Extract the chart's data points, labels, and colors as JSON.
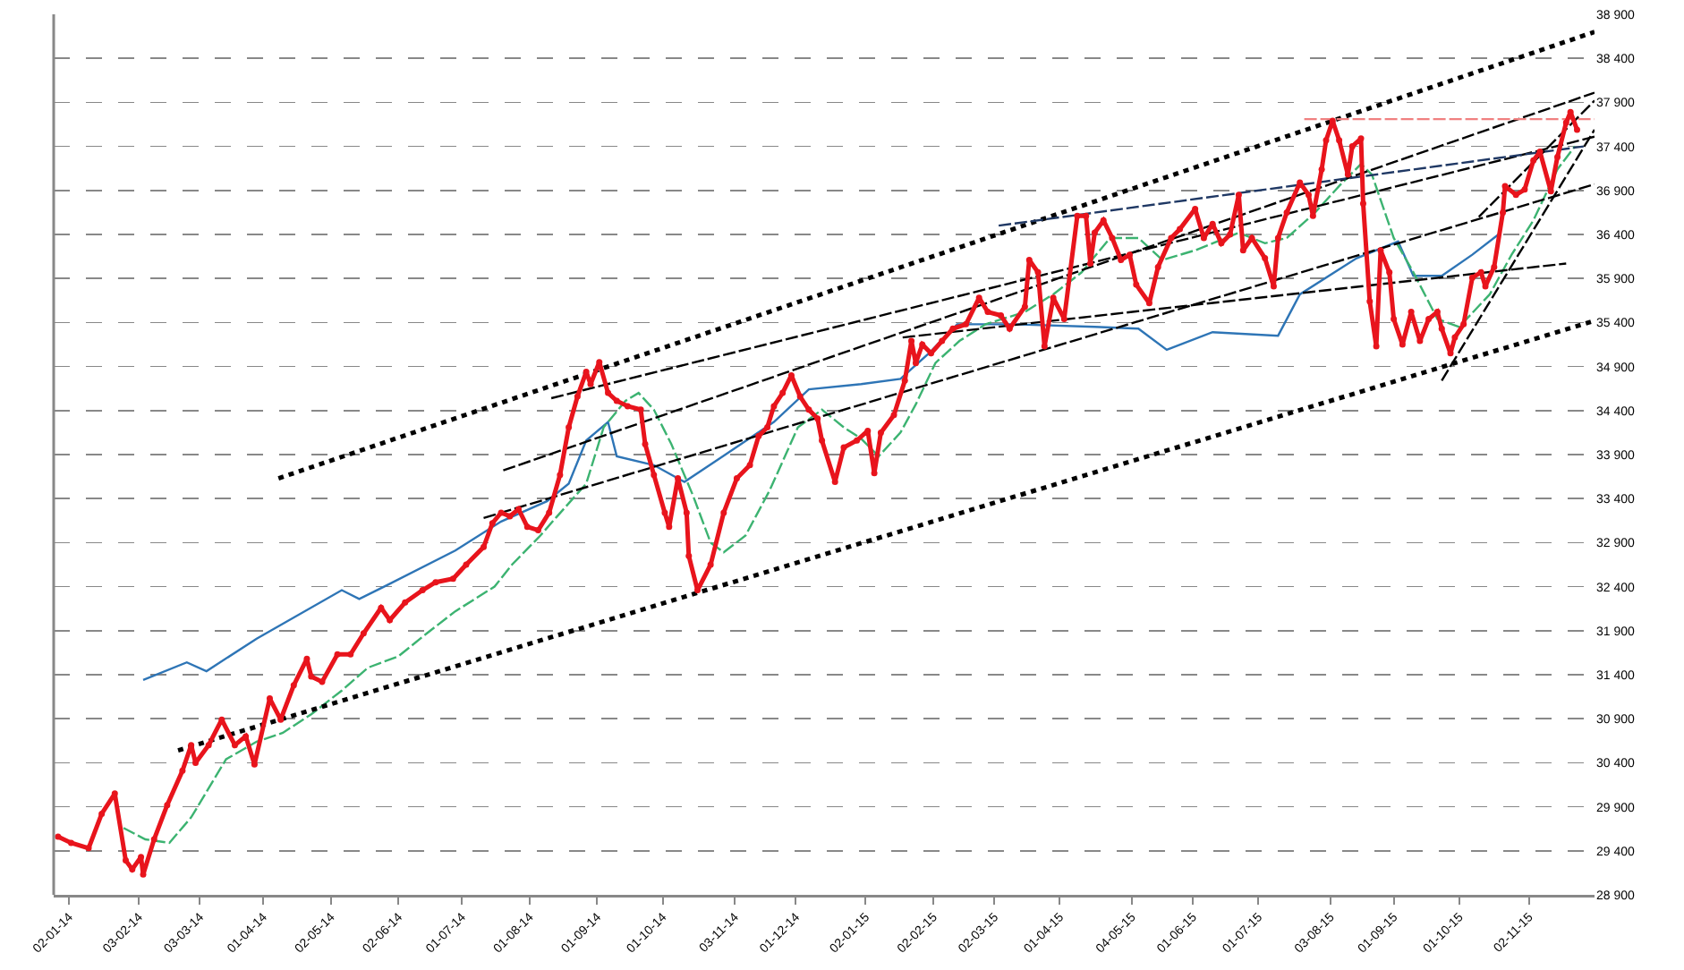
{
  "chart_data": {
    "type": "line",
    "grid": "y",
    "xlim": [
      "2013-12-26",
      "2015-12-02"
    ],
    "xticks": [
      {
        "value": "2014-01-02",
        "label": "02-01-14"
      },
      {
        "value": "2014-02-03",
        "label": "03-02-14"
      },
      {
        "value": "2014-03-03",
        "label": "03-03-14"
      },
      {
        "value": "2014-04-01",
        "label": "01-04-14"
      },
      {
        "value": "2014-05-02",
        "label": "02-05-14"
      },
      {
        "value": "2014-06-02",
        "label": "02-06-14"
      },
      {
        "value": "2014-07-01",
        "label": "01-07-14"
      },
      {
        "value": "2014-08-01",
        "label": "01-08-14"
      },
      {
        "value": "2014-09-01",
        "label": "01-09-14"
      },
      {
        "value": "2014-10-01",
        "label": "01-10-14"
      },
      {
        "value": "2014-11-03",
        "label": "03-11-14"
      },
      {
        "value": "2014-12-01",
        "label": "01-12-14"
      },
      {
        "value": "2015-01-02",
        "label": "02-01-15"
      },
      {
        "value": "2015-02-02",
        "label": "02-02-15"
      },
      {
        "value": "2015-03-02",
        "label": "02-03-15"
      },
      {
        "value": "2015-04-01",
        "label": "01-04-15"
      },
      {
        "value": "2015-05-04",
        "label": "04-05-15"
      },
      {
        "value": "2015-06-01",
        "label": "01-06-15"
      },
      {
        "value": "2015-07-01",
        "label": "01-07-15"
      },
      {
        "value": "2015-08-03",
        "label": "03-08-15"
      },
      {
        "value": "2015-09-01",
        "label": "01-09-15"
      },
      {
        "value": "2015-10-01",
        "label": "01-10-15"
      },
      {
        "value": "2015-11-02",
        "label": "02-11-15"
      }
    ],
    "ylim": [
      28900,
      38900
    ],
    "yticks": [
      {
        "value": 28900,
        "label": "28 900"
      },
      {
        "value": 29400,
        "label": "29 400"
      },
      {
        "value": 29900,
        "label": "29 900"
      },
      {
        "value": 30400,
        "label": "30 400"
      },
      {
        "value": 30900,
        "label": "30 900"
      },
      {
        "value": 31400,
        "label": "31 400"
      },
      {
        "value": 31900,
        "label": "31 900"
      },
      {
        "value": 32400,
        "label": "32 400"
      },
      {
        "value": 32900,
        "label": "32 900"
      },
      {
        "value": 33400,
        "label": "33 400"
      },
      {
        "value": 33900,
        "label": "33 900"
      },
      {
        "value": 34400,
        "label": "34 400"
      },
      {
        "value": 34900,
        "label": "34 900"
      },
      {
        "value": 35400,
        "label": "35 400"
      },
      {
        "value": 35900,
        "label": "35 900"
      },
      {
        "value": 36400,
        "label": "36 400"
      },
      {
        "value": 36900,
        "label": "36 900"
      },
      {
        "value": 37400,
        "label": "37 400"
      },
      {
        "value": 37900,
        "label": "37 900"
      },
      {
        "value": 38400,
        "label": "38 400"
      },
      {
        "value": 38900,
        "label": "38 900"
      }
    ],
    "series": [
      {
        "color": "#2e75b6",
        "line_style": "solid",
        "x": [
          "2014-02-05",
          "2014-02-25",
          "2014-03-06",
          "2014-03-29",
          "2014-05-07",
          "2014-05-15",
          "2014-05-28",
          "2014-06-28",
          "2014-07-19",
          "2014-08-09",
          "2014-08-19",
          "2014-08-27",
          "2014-09-06",
          "2014-09-10",
          "2014-09-27",
          "2014-10-11",
          "2014-10-31",
          "2014-11-21",
          "2014-12-07",
          "2014-12-31",
          "2015-01-18",
          "2015-01-31",
          "2015-02-13",
          "2015-03-11",
          "2015-04-17",
          "2015-05-07",
          "2015-05-20",
          "2015-06-10",
          "2015-07-10",
          "2015-07-20",
          "2015-08-15",
          "2015-09-03",
          "2015-09-10",
          "2015-09-23",
          "2015-10-07",
          "2015-10-19"
        ],
        "values": [
          31340,
          31540,
          31440,
          31810,
          32360,
          32260,
          32420,
          32810,
          33140,
          33370,
          33570,
          34060,
          34270,
          33880,
          33780,
          33590,
          33920,
          34270,
          34640,
          34700,
          34760,
          35050,
          35380,
          35380,
          35350,
          35330,
          35090,
          35290,
          35250,
          35720,
          36130,
          36320,
          35930,
          35930,
          36170,
          36400
        ]
      },
      {
        "color": "#3cb371",
        "line_style": "dashed",
        "x": [
          "2014-01-27",
          "2014-02-06",
          "2014-02-17",
          "2014-02-27",
          "2014-03-15",
          "2014-03-29",
          "2014-04-10",
          "2014-04-23",
          "2014-05-07",
          "2014-05-19",
          "2014-06-02",
          "2014-06-15",
          "2014-06-28",
          "2014-07-16",
          "2014-07-24",
          "2014-08-06",
          "2014-08-13",
          "2014-08-27",
          "2014-09-04",
          "2014-09-14",
          "2014-09-20",
          "2014-09-27",
          "2014-10-05",
          "2014-10-15",
          "2014-10-23",
          "2014-10-29",
          "2014-11-08",
          "2014-11-19",
          "2014-12-02",
          "2014-12-13",
          "2014-12-23",
          "2014-12-31",
          "2015-01-08",
          "2015-01-18",
          "2015-01-25",
          "2015-02-03",
          "2015-02-14",
          "2015-02-26",
          "2015-03-16",
          "2015-03-29",
          "2015-04-11",
          "2015-04-24",
          "2015-05-07",
          "2015-05-18",
          "2015-06-02",
          "2015-06-22",
          "2015-07-04",
          "2015-07-14",
          "2015-07-27",
          "2015-08-07",
          "2015-08-17",
          "2015-08-22",
          "2015-09-01",
          "2015-09-10",
          "2015-09-21",
          "2015-10-01",
          "2015-10-15",
          "2015-10-25",
          "2015-11-04",
          "2015-11-15",
          "2015-11-23"
        ],
        "values": [
          29660,
          29530,
          29490,
          29780,
          30440,
          30640,
          30740,
          30950,
          31220,
          31480,
          31610,
          31870,
          32120,
          32400,
          32650,
          32980,
          33180,
          33570,
          34210,
          34510,
          34600,
          34410,
          34020,
          33430,
          32900,
          32790,
          32980,
          33490,
          34210,
          34410,
          34210,
          34080,
          33880,
          34150,
          34470,
          34940,
          35190,
          35380,
          35520,
          35720,
          35970,
          36360,
          36360,
          36110,
          36220,
          36420,
          36300,
          36360,
          36650,
          36950,
          37200,
          37080,
          36360,
          35970,
          35440,
          35350,
          35720,
          36170,
          36560,
          37140,
          37400
        ]
      },
      {
        "color": "#000000",
        "line_style": "dotted",
        "x": [
          "2014-04-08",
          "2015-12-02"
        ],
        "values": [
          33630,
          38700
        ]
      },
      {
        "color": "#000000",
        "line_style": "dotted",
        "x": [
          "2014-02-21",
          "2015-12-02"
        ],
        "values": [
          30540,
          35420
        ]
      },
      {
        "color": "#000000",
        "line_style": "dashed",
        "x": [
          "2014-07-20",
          "2015-12-02"
        ],
        "values": [
          33720,
          38010
        ]
      },
      {
        "color": "#000000",
        "line_style": "dashed",
        "x": [
          "2014-08-11",
          "2015-12-02"
        ],
        "values": [
          34540,
          37510
        ]
      },
      {
        "color": "#000000",
        "line_style": "dashed",
        "x": [
          "2014-07-11",
          "2015-12-02"
        ],
        "values": [
          33180,
          36970
        ]
      },
      {
        "color": "#000000",
        "line_style": "dashed",
        "x": [
          "2015-01-19",
          "2015-11-19"
        ],
        "values": [
          35230,
          36070
        ]
      },
      {
        "color": "#1f3864",
        "line_style": "dashed",
        "x": [
          "2015-03-04",
          "2015-11-27"
        ],
        "values": [
          36500,
          37400
        ]
      },
      {
        "color": "#f08080",
        "line_style": "dashed",
        "x": [
          "2015-07-22",
          "2015-12-02"
        ],
        "values": [
          37710,
          37710
        ]
      },
      {
        "color": "#000000",
        "line_style": "dashed",
        "x": [
          "2015-09-23",
          "2015-12-02"
        ],
        "values": [
          34740,
          37590
        ]
      },
      {
        "color": "#000000",
        "line_style": "dashed",
        "x": [
          "2015-10-10",
          "2015-12-02"
        ],
        "values": [
          36600,
          37920
        ]
      },
      {
        "color": "#e8141c",
        "line_style": "solid",
        "marker": "circle",
        "x": [
          "2013-12-28",
          "2014-01-03",
          "2014-01-11",
          "2014-01-17",
          "2014-01-23",
          "2014-01-28",
          "2014-01-31",
          "2014-02-04",
          "2014-02-05",
          "2014-02-10",
          "2014-02-16",
          "2014-02-23",
          "2014-02-27",
          "2014-03-01",
          "2014-03-07",
          "2014-03-13",
          "2014-03-19",
          "2014-03-24",
          "2014-03-28",
          "2014-04-04",
          "2014-04-09",
          "2014-04-15",
          "2014-04-21",
          "2014-04-23",
          "2014-04-28",
          "2014-05-05",
          "2014-05-11",
          "2014-05-17",
          "2014-05-25",
          "2014-05-29",
          "2014-06-05",
          "2014-06-13",
          "2014-06-19",
          "2014-06-27",
          "2014-07-03",
          "2014-07-11",
          "2014-07-15",
          "2014-07-19",
          "2014-07-23",
          "2014-07-27",
          "2014-07-31",
          "2014-08-05",
          "2014-08-10",
          "2014-08-15",
          "2014-08-19",
          "2014-08-23",
          "2014-08-27",
          "2014-08-29",
          "2014-09-02",
          "2014-09-06",
          "2014-09-10",
          "2014-09-15",
          "2014-09-21",
          "2014-09-23",
          "2014-09-27",
          "2014-10-02",
          "2014-10-04",
          "2014-10-08",
          "2014-10-12",
          "2014-10-13",
          "2014-10-17",
          "2014-10-23",
          "2014-10-29",
          "2014-11-04",
          "2014-11-10",
          "2014-11-14",
          "2014-11-18",
          "2014-11-21",
          "2014-11-25",
          "2014-11-29",
          "2014-12-03",
          "2014-12-07",
          "2014-12-11",
          "2014-12-13",
          "2014-12-19",
          "2014-12-23",
          "2014-12-29",
          "2015-01-03",
          "2015-01-06",
          "2015-01-09",
          "2015-01-15",
          "2015-01-20",
          "2015-01-23",
          "2015-01-25",
          "2015-01-28",
          "2015-02-01",
          "2015-02-06",
          "2015-02-11",
          "2015-02-17",
          "2015-02-23",
          "2015-02-27",
          "2015-03-05",
          "2015-03-09",
          "2015-03-16",
          "2015-03-18",
          "2015-03-22",
          "2015-03-25",
          "2015-03-29",
          "2015-04-03",
          "2015-04-09",
          "2015-04-13",
          "2015-04-15",
          "2015-04-17",
          "2015-04-21",
          "2015-04-25",
          "2015-04-29",
          "2015-05-03",
          "2015-05-06",
          "2015-05-12",
          "2015-05-16",
          "2015-05-22",
          "2015-05-26",
          "2015-06-02",
          "2015-06-06",
          "2015-06-10",
          "2015-06-14",
          "2015-06-18",
          "2015-06-22",
          "2015-06-24",
          "2015-06-28",
          "2015-07-04",
          "2015-07-08",
          "2015-07-10",
          "2015-07-14",
          "2015-07-20",
          "2015-07-24",
          "2015-07-26",
          "2015-07-30",
          "2015-08-01",
          "2015-08-04",
          "2015-08-07",
          "2015-08-11",
          "2015-08-13",
          "2015-08-17",
          "2015-08-18",
          "2015-08-21",
          "2015-08-24",
          "2015-08-26",
          "2015-08-30",
          "2015-09-01",
          "2015-09-05",
          "2015-09-09",
          "2015-09-13",
          "2015-09-17",
          "2015-09-21",
          "2015-09-23",
          "2015-09-27",
          "2015-09-29",
          "2015-10-03",
          "2015-10-07",
          "2015-10-11",
          "2015-10-13",
          "2015-10-17",
          "2015-10-21",
          "2015-10-22",
          "2015-10-27",
          "2015-10-31",
          "2015-11-04",
          "2015-11-07",
          "2015-11-12",
          "2015-11-15",
          "2015-11-19",
          "2015-11-21",
          "2015-11-24"
        ],
        "values": [
          29560,
          29490,
          29430,
          29820,
          30050,
          29290,
          29190,
          29330,
          29130,
          29530,
          29920,
          30310,
          30600,
          30400,
          30600,
          30890,
          30600,
          30700,
          30380,
          31130,
          30890,
          31280,
          31580,
          31380,
          31320,
          31630,
          31630,
          31870,
          32160,
          32020,
          32220,
          32360,
          32450,
          32490,
          32650,
          32850,
          33120,
          33240,
          33200,
          33280,
          33080,
          33040,
          33240,
          33670,
          34210,
          34560,
          34840,
          34700,
          34950,
          34600,
          34510,
          34450,
          34410,
          34020,
          33670,
          33240,
          33080,
          33630,
          33240,
          32750,
          32360,
          32650,
          33240,
          33630,
          33780,
          34110,
          34210,
          34450,
          34600,
          34800,
          34560,
          34410,
          34310,
          34060,
          33590,
          33980,
          34060,
          34170,
          33690,
          34150,
          34350,
          34740,
          35190,
          34940,
          35150,
          35050,
          35190,
          35330,
          35380,
          35680,
          35520,
          35480,
          35330,
          35580,
          36110,
          35970,
          35130,
          35680,
          35440,
          36610,
          36610,
          36070,
          36420,
          36560,
          36360,
          36110,
          36170,
          35830,
          35620,
          36030,
          36360,
          36460,
          36690,
          36360,
          36520,
          36300,
          36400,
          36850,
          36220,
          36360,
          36130,
          35810,
          36360,
          36650,
          36990,
          36850,
          36610,
          37140,
          37470,
          37690,
          37470,
          37080,
          37400,
          37490,
          36750,
          35640,
          35130,
          36220,
          35970,
          35440,
          35150,
          35520,
          35190,
          35440,
          35520,
          35330,
          35050,
          35230,
          35380,
          35910,
          35970,
          35810,
          36030,
          36650,
          36950,
          36850,
          36910,
          37240,
          37340,
          36890,
          37280,
          37670,
          37790,
          37590
        ]
      }
    ]
  }
}
